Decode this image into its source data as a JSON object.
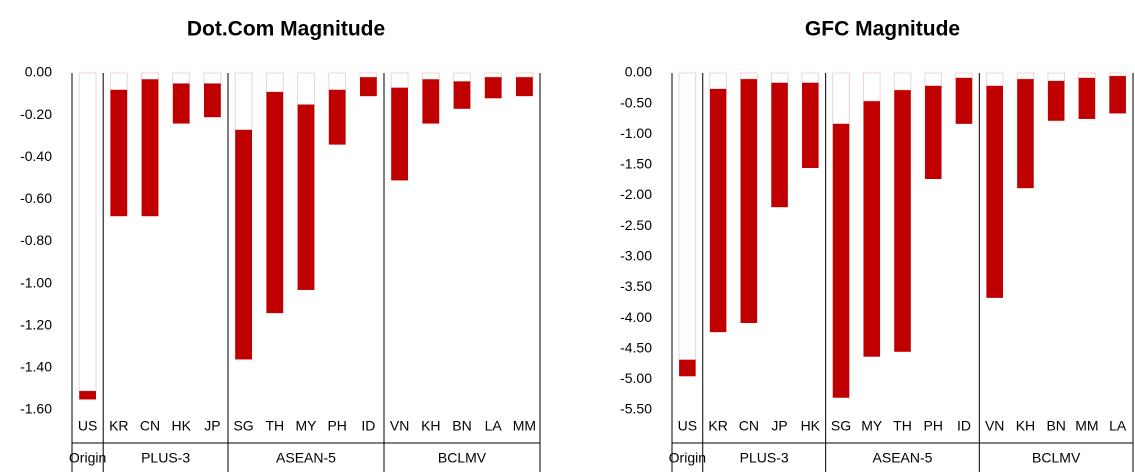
{
  "chart_data": [
    {
      "type": "floating-bar",
      "title": "Dot.Com Magnitude",
      "color": "#c00000",
      "ylim": [
        -1.6,
        0
      ],
      "yticks": [
        {
          "value": 0,
          "label": "0.00"
        },
        {
          "value": -0.2,
          "label": "-0.20"
        },
        {
          "value": -0.4,
          "label": "-0.40"
        },
        {
          "value": -0.6,
          "label": "-0.60"
        },
        {
          "value": -0.8,
          "label": "-0.80"
        },
        {
          "value": -1.0,
          "label": "-1.00"
        },
        {
          "value": -1.2,
          "label": "-1.20"
        },
        {
          "value": -1.4,
          "label": "-1.40"
        },
        {
          "value": -1.6,
          "label": "-1.60"
        }
      ],
      "groups": [
        {
          "name": "Origin",
          "categories": [
            "US"
          ],
          "ranges": [
            [
              -1.51,
              -1.55
            ]
          ]
        },
        {
          "name": "PLUS-3",
          "categories": [
            "KR",
            "CN",
            "HK",
            "JP"
          ],
          "ranges": [
            [
              -0.08,
              -0.68
            ],
            [
              -0.03,
              -0.68
            ],
            [
              -0.05,
              -0.24
            ],
            [
              -0.05,
              -0.21
            ]
          ]
        },
        {
          "name": "ASEAN-5",
          "categories": [
            "SG",
            "TH",
            "MY",
            "PH",
            "ID"
          ],
          "ranges": [
            [
              -0.27,
              -1.36
            ],
            [
              -0.09,
              -1.14
            ],
            [
              -0.15,
              -1.03
            ],
            [
              -0.08,
              -0.34
            ],
            [
              -0.02,
              -0.11
            ]
          ]
        },
        {
          "name": "BCLMV",
          "categories": [
            "VN",
            "KH",
            "BN",
            "LA",
            "MM"
          ],
          "ranges": [
            [
              -0.07,
              -0.51
            ],
            [
              -0.03,
              -0.24
            ],
            [
              -0.04,
              -0.17
            ],
            [
              -0.02,
              -0.12
            ],
            [
              -0.02,
              -0.11
            ]
          ]
        }
      ]
    },
    {
      "type": "floating-bar",
      "title": "GFC Magnitude",
      "color": "#c00000",
      "ylim": [
        -5.5,
        0
      ],
      "yticks": [
        {
          "value": 0,
          "label": "0.00"
        },
        {
          "value": -0.5,
          "label": "-0.50"
        },
        {
          "value": -1.0,
          "label": "-1.00"
        },
        {
          "value": -1.5,
          "label": "-1.50"
        },
        {
          "value": -2.0,
          "label": "-2.00"
        },
        {
          "value": -2.5,
          "label": "-2.50"
        },
        {
          "value": -3.0,
          "label": "-3.00"
        },
        {
          "value": -3.5,
          "label": "-3.50"
        },
        {
          "value": -4.0,
          "label": "-4.00"
        },
        {
          "value": -4.5,
          "label": "-4.50"
        },
        {
          "value": -5.0,
          "label": "-5.00"
        },
        {
          "value": -5.5,
          "label": "-5.50"
        }
      ],
      "groups": [
        {
          "name": "Origin",
          "categories": [
            "US"
          ],
          "ranges": [
            [
              -4.68,
              -4.95
            ]
          ]
        },
        {
          "name": "PLUS-3",
          "categories": [
            "KR",
            "CN",
            "JP",
            "HK"
          ],
          "ranges": [
            [
              -0.26,
              -4.23
            ],
            [
              -0.1,
              -4.08
            ],
            [
              -0.16,
              -2.19
            ],
            [
              -0.16,
              -1.55
            ]
          ]
        },
        {
          "name": "ASEAN-5",
          "categories": [
            "SG",
            "MY",
            "TH",
            "PH",
            "ID"
          ],
          "ranges": [
            [
              -0.83,
              -5.3
            ],
            [
              -0.46,
              -4.63
            ],
            [
              -0.28,
              -4.55
            ],
            [
              -0.21,
              -1.73
            ],
            [
              -0.08,
              -0.83
            ]
          ]
        },
        {
          "name": "BCLMV",
          "categories": [
            "VN",
            "KH",
            "BN",
            "MM",
            "LA"
          ],
          "ranges": [
            [
              -0.21,
              -3.67
            ],
            [
              -0.1,
              -1.88
            ],
            [
              -0.13,
              -0.78
            ],
            [
              -0.08,
              -0.75
            ],
            [
              -0.05,
              -0.66
            ]
          ]
        }
      ]
    }
  ]
}
